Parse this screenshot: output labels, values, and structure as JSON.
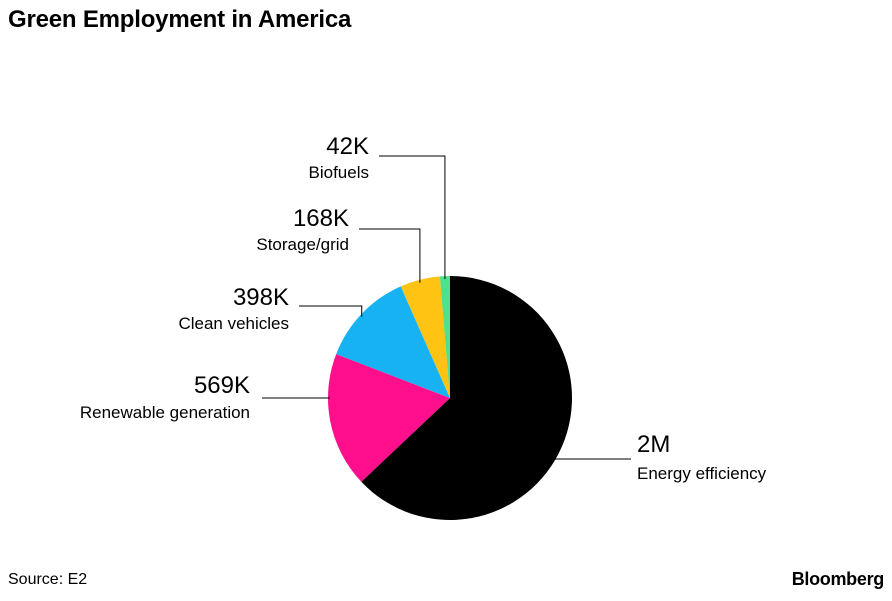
{
  "header": {
    "title": "Green Employment in America"
  },
  "footer": {
    "source": "Source: E2",
    "brand": "Bloomberg"
  },
  "colors": {
    "energy_efficiency": "#000000",
    "renewable_generation": "#ff0f8c",
    "clean_vehicles": "#17b2f2",
    "storage_grid": "#ffc313",
    "biofuels": "#4fe08a"
  },
  "chart_data": {
    "type": "pie",
    "title": "Green Employment in America",
    "slices": [
      {
        "label": "Energy efficiency",
        "value_label": "2M",
        "value": 2000000,
        "color": "#000000"
      },
      {
        "label": "Renewable generation",
        "value_label": "569K",
        "value": 569000,
        "color": "#ff0f8c"
      },
      {
        "label": "Clean vehicles",
        "value_label": "398K",
        "value": 398000,
        "color": "#17b2f2"
      },
      {
        "label": "Storage/grid",
        "value_label": "168K",
        "value": 168000,
        "color": "#ffc313"
      },
      {
        "label": "Biofuels",
        "value_label": "42K",
        "value": 42000,
        "color": "#4fe08a"
      }
    ]
  }
}
